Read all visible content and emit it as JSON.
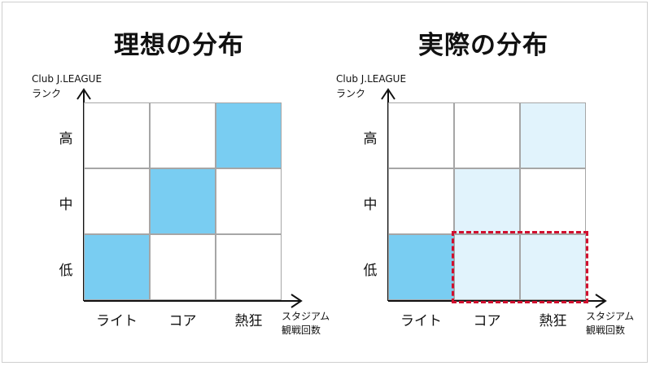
{
  "left": {
    "title": "理想の分布",
    "y_axis_label": [
      "Club J.LEAGUE",
      "ランク"
    ],
    "x_axis_label": [
      "スタジアム",
      "観戦回数"
    ],
    "rows": [
      "高",
      "中",
      "低"
    ],
    "columns": [
      "ライト",
      "コア",
      "熱狂"
    ],
    "fills": [
      [
        "none",
        "none",
        "strong"
      ],
      [
        "none",
        "strong",
        "none"
      ],
      [
        "strong",
        "none",
        "none"
      ]
    ]
  },
  "right": {
    "title": "実際の分布",
    "y_axis_label": [
      "Club J.LEAGUE",
      "ランク"
    ],
    "x_axis_label": [
      "スタジアム",
      "観戦回数"
    ],
    "rows": [
      "高",
      "中",
      "低"
    ],
    "columns": [
      "ライト",
      "コア",
      "熱狂"
    ],
    "fills": [
      [
        "none",
        "none",
        "light"
      ],
      [
        "none",
        "light",
        "none"
      ],
      [
        "strong",
        "light",
        "light"
      ]
    ],
    "highlight": {
      "row": "低",
      "columns": [
        "コア",
        "熱狂"
      ]
    }
  },
  "colors": {
    "strong_fill": "#79cdf2",
    "light_fill": "#e1f3fc",
    "grid_line": "#a6a6a6",
    "axis": "#111111",
    "highlight_border": "#d10f2f"
  }
}
